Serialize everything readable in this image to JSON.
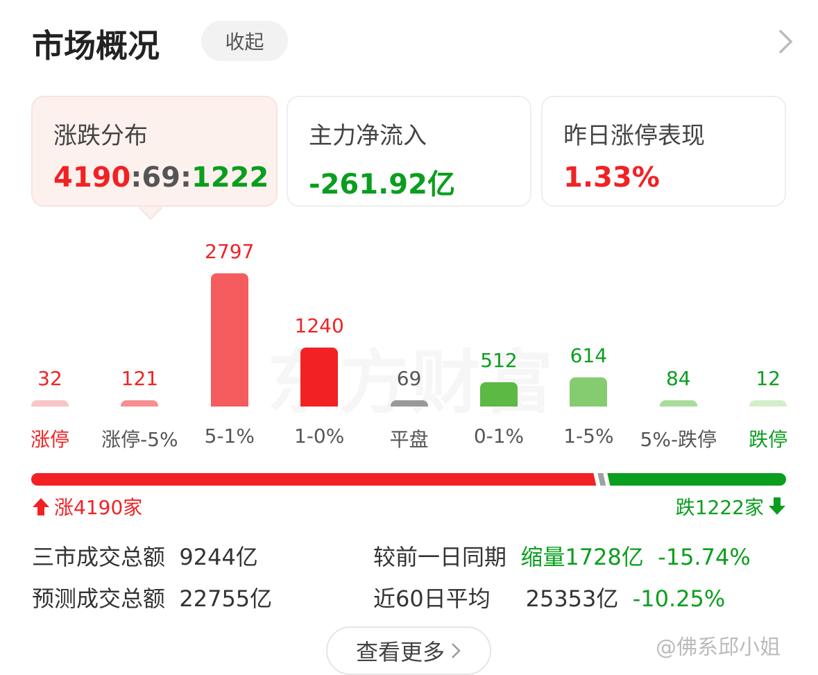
{
  "header": {
    "title": "市场概况",
    "collapse_label": "收起"
  },
  "cards": [
    {
      "label": "涨跌分布",
      "up": "4190",
      "sep1": ":",
      "flat": "69",
      "sep2": ":",
      "down": "1222"
    },
    {
      "label": "主力净流入",
      "value": "-261.92亿"
    },
    {
      "label": "昨日涨停表现",
      "value": "1.33%"
    }
  ],
  "watermark": "东方财富",
  "chart_data": {
    "type": "bar",
    "categories": [
      "涨停",
      "涨停-5%",
      "5-1%",
      "1-0%",
      "平盘",
      "0-1%",
      "1-5%",
      "5%-跌停",
      "跌停"
    ],
    "values": [
      32,
      121,
      2797,
      1240,
      69,
      512,
      614,
      84,
      12
    ],
    "colors": [
      "#f9c5c5",
      "#f58f92",
      "#f55c5e",
      "#f22124",
      "#999999",
      "#5bb944",
      "#85cb70",
      "#a9dc9b",
      "#d4eecb"
    ],
    "label_colors": [
      "#f22124",
      "#f22124",
      "#f22124",
      "#f22124",
      "#555555",
      "#0a9e1e",
      "#0a9e1e",
      "#0a9e1e",
      "#0a9e1e"
    ],
    "category_colors": [
      "#f22124",
      "#555555",
      "#555555",
      "#555555",
      "#555555",
      "#555555",
      "#555555",
      "#555555",
      "#0a9e1e"
    ]
  },
  "ratio": {
    "up_count": 4190,
    "flat_count": 69,
    "down_count": 1222,
    "up_label": "涨4190家",
    "down_label": "跌1222家"
  },
  "stats": {
    "total_label": "三市成交总额",
    "total_value": "9244亿",
    "compare_label": "较前一日同期",
    "compare_change": "缩量1728亿",
    "compare_pct": "-15.74%",
    "forecast_label": "预测成交总额",
    "forecast_value": "22755亿",
    "avg_label": "近60日平均",
    "avg_value": "25353亿",
    "avg_pct": "-10.25%"
  },
  "more_label": "查看更多",
  "weibo_mark": "@佛系邱小姐"
}
